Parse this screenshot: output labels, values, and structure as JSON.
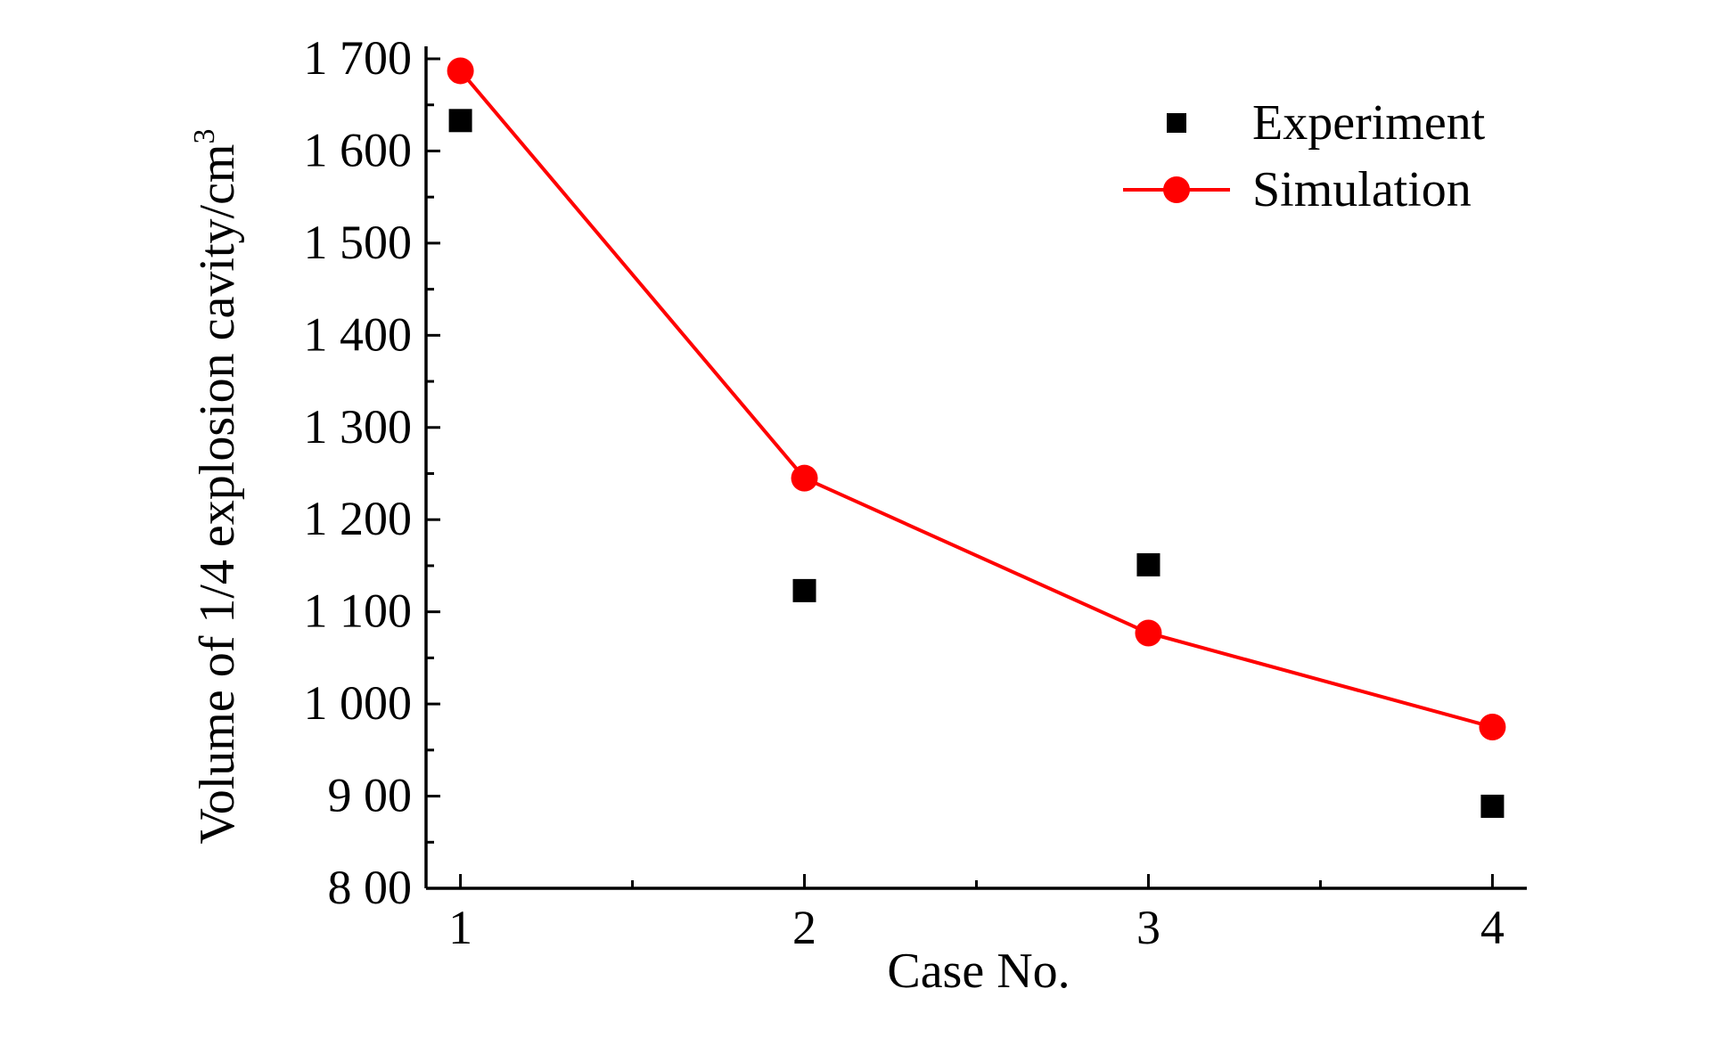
{
  "chart_data": {
    "type": "line",
    "xlabel": "Case No.",
    "ylabel": "Volume of 1/4 explosion cavity/cm",
    "ylabel_superscript": "3",
    "x": [
      1,
      2,
      3,
      4
    ],
    "x_tick_labels": [
      "1",
      "2",
      "3",
      "4"
    ],
    "xlim": [
      0.9,
      4.1
    ],
    "ylim": [
      800,
      1700
    ],
    "y_tick_values": [
      800,
      900,
      1000,
      1100,
      1200,
      1300,
      1400,
      1500,
      1600,
      1700
    ],
    "y_tick_labels": [
      "8 00",
      "9 00",
      "1 000",
      "1 100",
      "1 200",
      "1 300",
      "1 400",
      "1 500",
      "1 600",
      "1 700"
    ],
    "grid": false,
    "legend_position": "top-right",
    "series": [
      {
        "name": "Experiment",
        "style": "scatter",
        "marker": "square",
        "color": "#000000",
        "values": [
          1633,
          1123,
          1151,
          889
        ]
      },
      {
        "name": "Simulation",
        "style": "line",
        "marker": "circle",
        "color": "#ff0000",
        "values": [
          1687,
          1245,
          1077,
          975
        ]
      }
    ]
  }
}
